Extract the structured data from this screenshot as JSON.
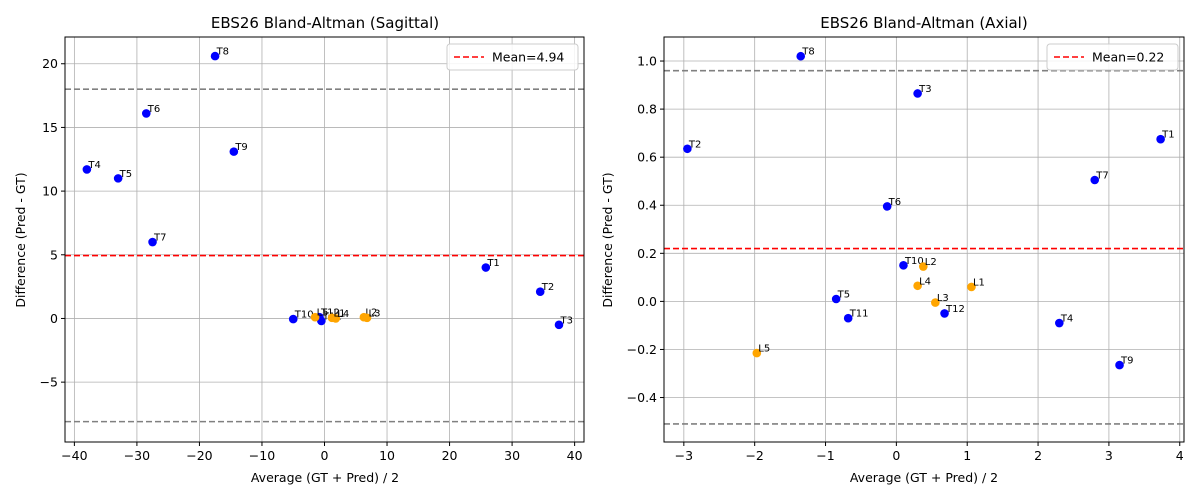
{
  "chart_data": [
    {
      "type": "scatter",
      "title": "EBS26 Bland-Altman (Sagittal)",
      "xlabel": "Average (GT + Pred) / 2",
      "ylabel": "Difference (Pred - GT)",
      "xlim": [
        -41.5,
        41.5
      ],
      "ylim": [
        -9.7,
        22.1
      ],
      "xticks": [
        -40,
        -30,
        -20,
        -10,
        0,
        10,
        20,
        30,
        40
      ],
      "yticks": [
        -5,
        0,
        5,
        10,
        15,
        20
      ],
      "grid": true,
      "legend_position": "top-right",
      "mean": 4.94,
      "mean_label": "Mean=4.94",
      "loa_upper": 18.0,
      "loa_lower": -8.1,
      "colors": {
        "thoracic": "#0000ff",
        "lumbar": "#ffa500",
        "mean_line": "#ff0000",
        "loa_line": "#808080"
      },
      "points": [
        {
          "label": "T8",
          "x": -17.5,
          "y": 20.6,
          "group": "thoracic"
        },
        {
          "label": "T6",
          "x": -28.5,
          "y": 16.1,
          "group": "thoracic"
        },
        {
          "label": "T9",
          "x": -14.5,
          "y": 13.1,
          "group": "thoracic"
        },
        {
          "label": "T4",
          "x": -38.0,
          "y": 11.7,
          "group": "thoracic"
        },
        {
          "label": "T5",
          "x": -33.0,
          "y": 11.0,
          "group": "thoracic"
        },
        {
          "label": "T7",
          "x": -27.5,
          "y": 6.0,
          "group": "thoracic"
        },
        {
          "label": "T1",
          "x": 25.8,
          "y": 4.0,
          "group": "thoracic"
        },
        {
          "label": "T2",
          "x": 34.5,
          "y": 2.1,
          "group": "thoracic"
        },
        {
          "label": "T3",
          "x": 37.5,
          "y": -0.5,
          "group": "thoracic"
        },
        {
          "label": "T10",
          "x": -5.0,
          "y": -0.05,
          "group": "thoracic"
        },
        {
          "label": "T11",
          "x": -0.5,
          "y": -0.2,
          "group": "thoracic"
        },
        {
          "label": "T12",
          "x": -0.8,
          "y": 0.1,
          "group": "thoracic"
        },
        {
          "label": "L5",
          "x": -1.5,
          "y": 0.1,
          "group": "lumbar"
        },
        {
          "label": "L4",
          "x": 1.8,
          "y": 0.0,
          "group": "lumbar"
        },
        {
          "label": "L1",
          "x": 1.2,
          "y": 0.05,
          "group": "lumbar"
        },
        {
          "label": "L2",
          "x": 6.3,
          "y": 0.1,
          "group": "lumbar"
        },
        {
          "label": "L3",
          "x": 6.8,
          "y": 0.05,
          "group": "lumbar"
        }
      ]
    },
    {
      "type": "scatter",
      "title": "EBS26 Bland-Altman (Axial)",
      "xlabel": "Average (GT + Pred) / 2",
      "ylabel": "Difference (Pred - GT)",
      "xlim": [
        -3.28,
        4.06
      ],
      "ylim": [
        -0.585,
        1.1
      ],
      "xticks": [
        -3,
        -2,
        -1,
        0,
        1,
        2,
        3,
        4
      ],
      "yticks": [
        -0.4,
        -0.2,
        0.0,
        0.2,
        0.4,
        0.6,
        0.8,
        1.0
      ],
      "grid": true,
      "legend_position": "top-right",
      "mean": 0.22,
      "mean_label": "Mean=0.22",
      "loa_upper": 0.96,
      "loa_lower": -0.51,
      "colors": {
        "thoracic": "#0000ff",
        "lumbar": "#ffa500",
        "mean_line": "#ff0000",
        "loa_line": "#808080"
      },
      "points": [
        {
          "label": "T8",
          "x": -1.35,
          "y": 1.02,
          "group": "thoracic"
        },
        {
          "label": "T3",
          "x": 0.3,
          "y": 0.865,
          "group": "thoracic"
        },
        {
          "label": "T1",
          "x": 3.73,
          "y": 0.675,
          "group": "thoracic"
        },
        {
          "label": "T2",
          "x": -2.95,
          "y": 0.635,
          "group": "thoracic"
        },
        {
          "label": "T7",
          "x": 2.8,
          "y": 0.505,
          "group": "thoracic"
        },
        {
          "label": "T6",
          "x": -0.13,
          "y": 0.395,
          "group": "thoracic"
        },
        {
          "label": "T10",
          "x": 0.1,
          "y": 0.15,
          "group": "thoracic"
        },
        {
          "label": "L2",
          "x": 0.38,
          "y": 0.145,
          "group": "lumbar"
        },
        {
          "label": "L4",
          "x": 0.3,
          "y": 0.065,
          "group": "lumbar"
        },
        {
          "label": "L1",
          "x": 1.06,
          "y": 0.06,
          "group": "lumbar"
        },
        {
          "label": "T5",
          "x": -0.85,
          "y": 0.01,
          "group": "thoracic"
        },
        {
          "label": "L3",
          "x": 0.55,
          "y": -0.005,
          "group": "lumbar"
        },
        {
          "label": "T12",
          "x": 0.68,
          "y": -0.05,
          "group": "thoracic"
        },
        {
          "label": "T11",
          "x": -0.68,
          "y": -0.07,
          "group": "thoracic"
        },
        {
          "label": "T4",
          "x": 2.3,
          "y": -0.09,
          "group": "thoracic"
        },
        {
          "label": "L5",
          "x": -1.97,
          "y": -0.215,
          "group": "lumbar"
        },
        {
          "label": "T9",
          "x": 3.15,
          "y": -0.265,
          "group": "thoracic"
        }
      ]
    }
  ]
}
